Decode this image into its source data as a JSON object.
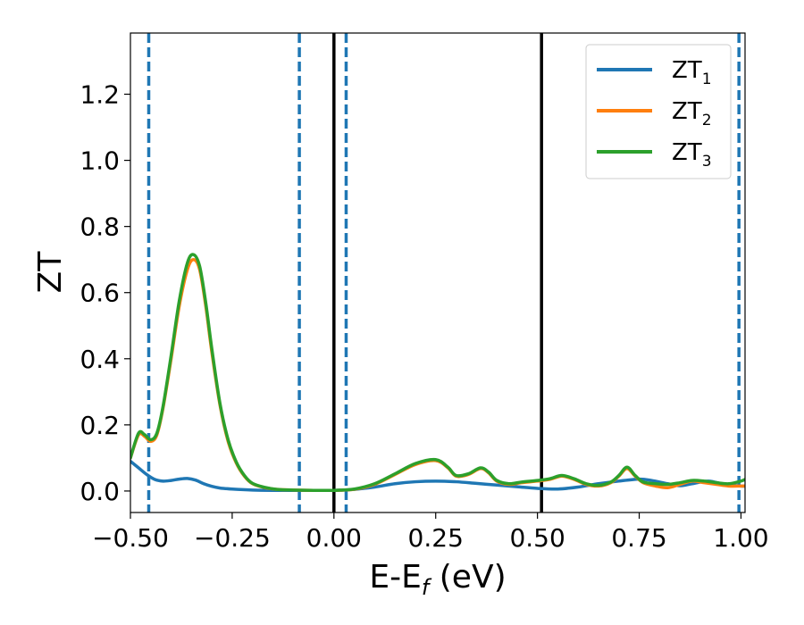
{
  "chart_data": {
    "type": "line",
    "title": "",
    "xlabel": "E-E_f (eV)",
    "xlabel_parts": {
      "main": "E-E",
      "sub": "f",
      "unit": " (eV)"
    },
    "ylabel": "ZT",
    "xlim": [
      -0.5,
      1.01
    ],
    "ylim": [
      -0.065,
      1.385
    ],
    "xticks": [
      -0.5,
      -0.25,
      0.0,
      0.25,
      0.5,
      0.75,
      1.0
    ],
    "xtick_labels": [
      "−0.50",
      "−0.25",
      "0.00",
      "0.25",
      "0.50",
      "0.75",
      "1.00"
    ],
    "yticks": [
      0.0,
      0.2,
      0.4,
      0.6,
      0.8,
      1.0,
      1.2
    ],
    "ytick_labels": [
      "0.0",
      "0.2",
      "0.4",
      "0.6",
      "0.8",
      "1.0",
      "1.2"
    ],
    "grid": false,
    "legend_position": "top-right",
    "vlines_dashed": {
      "color": "#1f77b4",
      "x": [
        -0.455,
        -0.085,
        0.03,
        0.995
      ]
    },
    "vlines_solid": {
      "color": "#000000",
      "x": [
        0.0,
        0.51
      ]
    },
    "series": [
      {
        "name": "ZT_1",
        "label_main": "ZT",
        "label_sub": "1",
        "color": "#1f77b4",
        "x": [
          -0.5,
          -0.48,
          -0.46,
          -0.44,
          -0.42,
          -0.4,
          -0.38,
          -0.36,
          -0.34,
          -0.32,
          -0.3,
          -0.28,
          -0.25,
          -0.2,
          -0.15,
          -0.1,
          -0.05,
          0.0,
          0.05,
          0.1,
          0.15,
          0.2,
          0.25,
          0.3,
          0.35,
          0.4,
          0.45,
          0.5,
          0.55,
          0.6,
          0.65,
          0.7,
          0.75,
          0.78,
          0.82,
          0.85,
          0.88,
          0.92,
          0.96,
          1.0,
          1.01
        ],
        "y": [
          0.09,
          0.07,
          0.05,
          0.035,
          0.03,
          0.032,
          0.036,
          0.038,
          0.033,
          0.022,
          0.014,
          0.009,
          0.006,
          0.003,
          0.002,
          0.002,
          0.002,
          0.002,
          0.005,
          0.012,
          0.022,
          0.028,
          0.03,
          0.028,
          0.023,
          0.018,
          0.013,
          0.008,
          0.006,
          0.012,
          0.022,
          0.03,
          0.036,
          0.032,
          0.022,
          0.016,
          0.022,
          0.03,
          0.02,
          0.015,
          0.015
        ]
      },
      {
        "name": "ZT_2",
        "label_main": "ZT",
        "label_sub": "2",
        "color": "#ff7f0e",
        "x": [
          -0.5,
          -0.48,
          -0.465,
          -0.45,
          -0.435,
          -0.42,
          -0.4,
          -0.38,
          -0.36,
          -0.345,
          -0.33,
          -0.315,
          -0.3,
          -0.28,
          -0.26,
          -0.24,
          -0.22,
          -0.2,
          -0.17,
          -0.14,
          -0.1,
          -0.05,
          0.0,
          0.05,
          0.1,
          0.15,
          0.2,
          0.25,
          0.28,
          0.3,
          0.33,
          0.36,
          0.38,
          0.4,
          0.43,
          0.46,
          0.5,
          0.53,
          0.56,
          0.59,
          0.62,
          0.65,
          0.68,
          0.7,
          0.72,
          0.74,
          0.76,
          0.79,
          0.82,
          0.85,
          0.88,
          0.91,
          0.94,
          0.97,
          1.0,
          1.01
        ],
        "y": [
          0.1,
          0.17,
          0.165,
          0.15,
          0.17,
          0.25,
          0.4,
          0.56,
          0.67,
          0.7,
          0.67,
          0.56,
          0.42,
          0.26,
          0.15,
          0.085,
          0.045,
          0.022,
          0.01,
          0.005,
          0.003,
          0.002,
          0.002,
          0.005,
          0.02,
          0.05,
          0.08,
          0.092,
          0.07,
          0.045,
          0.05,
          0.068,
          0.055,
          0.03,
          0.02,
          0.025,
          0.03,
          0.035,
          0.045,
          0.035,
          0.02,
          0.015,
          0.025,
          0.045,
          0.068,
          0.045,
          0.025,
          0.015,
          0.01,
          0.02,
          0.03,
          0.025,
          0.02,
          0.015,
          0.015,
          0.015
        ]
      },
      {
        "name": "ZT_3",
        "label_main": "ZT",
        "label_sub": "3",
        "color": "#2ca02c",
        "x": [
          -0.5,
          -0.48,
          -0.465,
          -0.45,
          -0.435,
          -0.42,
          -0.4,
          -0.38,
          -0.36,
          -0.345,
          -0.33,
          -0.315,
          -0.3,
          -0.28,
          -0.26,
          -0.24,
          -0.22,
          -0.2,
          -0.17,
          -0.14,
          -0.1,
          -0.05,
          0.0,
          0.05,
          0.1,
          0.15,
          0.2,
          0.25,
          0.28,
          0.3,
          0.33,
          0.36,
          0.38,
          0.4,
          0.43,
          0.46,
          0.5,
          0.53,
          0.56,
          0.59,
          0.62,
          0.65,
          0.68,
          0.7,
          0.72,
          0.74,
          0.76,
          0.79,
          0.82,
          0.85,
          0.88,
          0.91,
          0.94,
          0.97,
          1.0,
          1.01
        ],
        "y": [
          0.1,
          0.175,
          0.17,
          0.155,
          0.175,
          0.255,
          0.41,
          0.575,
          0.69,
          0.715,
          0.68,
          0.57,
          0.43,
          0.265,
          0.155,
          0.088,
          0.047,
          0.023,
          0.011,
          0.005,
          0.003,
          0.002,
          0.002,
          0.006,
          0.022,
          0.052,
          0.083,
          0.095,
          0.072,
          0.047,
          0.052,
          0.07,
          0.057,
          0.032,
          0.022,
          0.027,
          0.032,
          0.037,
          0.047,
          0.037,
          0.022,
          0.017,
          0.027,
          0.047,
          0.072,
          0.047,
          0.027,
          0.022,
          0.02,
          0.025,
          0.032,
          0.03,
          0.025,
          0.022,
          0.03,
          0.035
        ]
      }
    ]
  }
}
